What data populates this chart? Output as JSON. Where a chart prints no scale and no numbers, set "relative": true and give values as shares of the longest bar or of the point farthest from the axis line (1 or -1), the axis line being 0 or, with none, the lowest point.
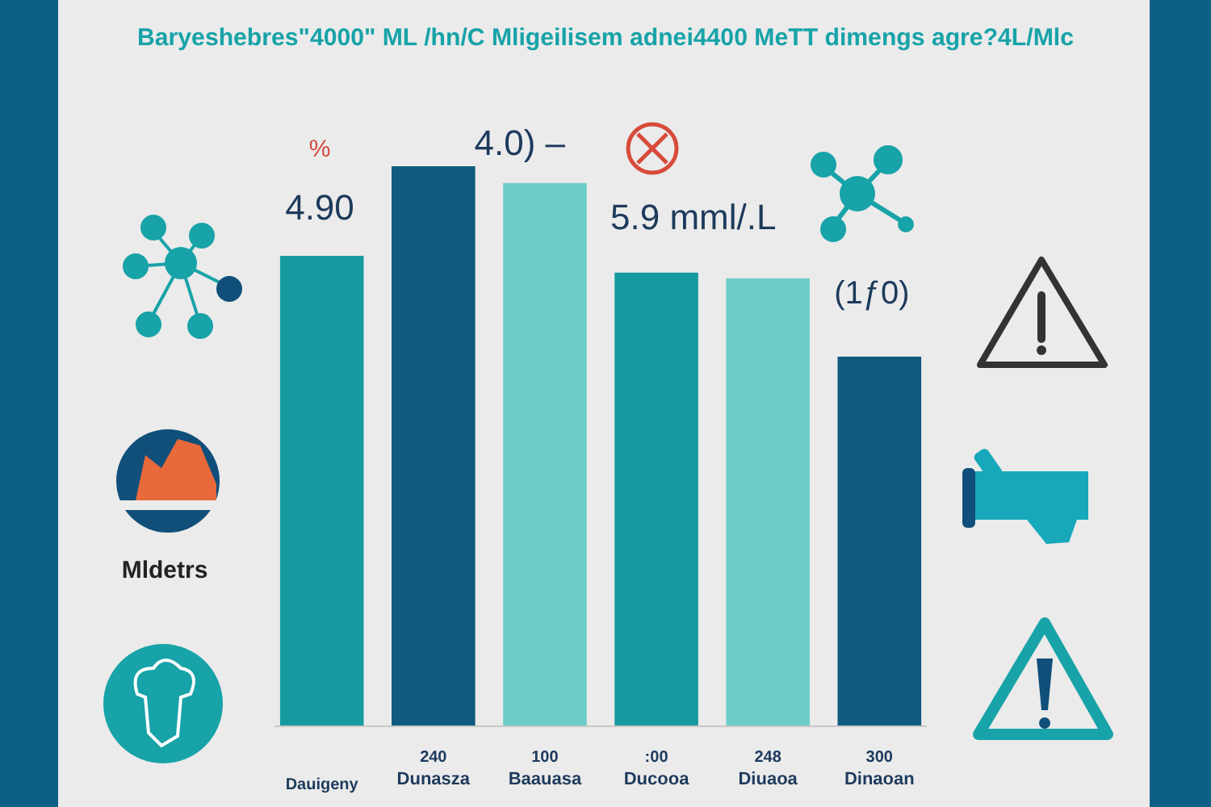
{
  "chart_data": {
    "type": "bar",
    "relative": true,
    "title": "Baryeshebres\"4000\" ML /hn/C Mligeilisem adnei4400 MeTT dimengs agre?4L/Mlc",
    "categories": [
      "Dauigeny",
      "240\nDunasza",
      "100\nBaauasa",
      ":00\nDucooa",
      "248\nDiuaoa",
      "300\nDinaoan"
    ],
    "values": [
      0.84,
      1,
      0.97,
      0.81,
      0.8,
      0.66
    ],
    "colors": [
      "#169a9f",
      "#0f5a7d",
      "#6ccdc8",
      "#169a9f",
      "#6ccdc8",
      "#0f5a7d"
    ],
    "annotations": [
      "%",
      "4.90",
      "4.0) –",
      "5.9 mml/.L",
      "(1ƒ0)",
      "Mldetrs"
    ]
  }
}
